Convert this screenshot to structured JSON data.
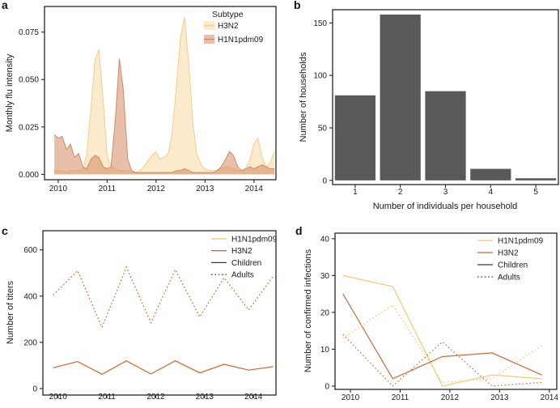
{
  "figure": {
    "panel_labels": {
      "a": "a",
      "b": "b",
      "c": "c",
      "d": "d"
    }
  },
  "colors": {
    "axis": "#262626",
    "text": "#1a1a1a",
    "background": "#ffffff",
    "bar": "#595959",
    "h3n2_fill": "#FBEACB",
    "h3n2_edge": "#F1CE8F",
    "h1n1_fill": "rgba(208,128,87,0.5)",
    "h1n1_edge": "#CE8B66",
    "h1n1_line": "#F6C76F",
    "h3n2_line": "#CF6B3D",
    "group_line": "#3a3a3a"
  },
  "chart_data": [
    {
      "id": "a",
      "type": "area",
      "title": "",
      "xlabel": "",
      "ylabel": "Monthly flu intensity",
      "xlim": [
        2009.72,
        2014.45
      ],
      "ylim": [
        -0.0028,
        0.0885
      ],
      "xticks": [
        2010,
        2011,
        2012,
        2013,
        2014
      ],
      "yticks": [
        0,
        0.025,
        0.05,
        0.075
      ],
      "ytick_labels": [
        "0.000",
        "0.025",
        "0.050",
        "0.075"
      ],
      "grid": false,
      "legend": {
        "title": "Subtype",
        "position": "top-right",
        "entries": [
          {
            "label": "H3N2",
            "fill": "#FBEACB",
            "line": "#F1CE8F"
          },
          {
            "label": "H1N1pdm09",
            "fill": "rgba(208,128,87,0.5)",
            "line": "#CE8B66"
          }
        ]
      },
      "series": [
        {
          "name": "H3N2",
          "fill": "#FBEACB",
          "line": "#F1CE8F",
          "x": [
            2009.92,
            2010.0,
            2010.08,
            2010.17,
            2010.25,
            2010.33,
            2010.42,
            2010.5,
            2010.58,
            2010.67,
            2010.75,
            2010.83,
            2010.92,
            2011.0,
            2011.08,
            2011.17,
            2011.25,
            2011.33,
            2011.42,
            2011.5,
            2011.58,
            2011.67,
            2011.75,
            2011.83,
            2011.92,
            2012.0,
            2012.08,
            2012.17,
            2012.25,
            2012.33,
            2012.42,
            2012.5,
            2012.58,
            2012.67,
            2012.75,
            2012.83,
            2012.92,
            2013.0,
            2013.08,
            2013.17,
            2013.25,
            2013.33,
            2013.42,
            2013.5,
            2013.58,
            2013.67,
            2013.75,
            2013.83,
            2013.92,
            2014.0,
            2014.08,
            2014.17,
            2014.25,
            2014.33,
            2014.42
          ],
          "y": [
            0.002,
            0.002,
            0.002,
            0.001,
            0.002,
            0.002,
            0.002,
            0.003,
            0.01,
            0.035,
            0.06,
            0.066,
            0.038,
            0.01,
            0.004,
            0.003,
            0.002,
            0.002,
            0.002,
            0.001,
            0.001,
            0.002,
            0.004,
            0.007,
            0.01,
            0.012,
            0.008,
            0.009,
            0.011,
            0.022,
            0.048,
            0.072,
            0.083,
            0.058,
            0.028,
            0.011,
            0.005,
            0.003,
            0.002,
            0.002,
            0.002,
            0.003,
            0.004,
            0.004,
            0.003,
            0.002,
            0.002,
            0.003,
            0.008,
            0.016,
            0.019,
            0.009,
            0.004,
            0.006,
            0.012
          ]
        },
        {
          "name": "H1N1pdm09",
          "fill": "rgba(208,128,87,0.5)",
          "line": "#CE8B66",
          "x": [
            2009.92,
            2010.0,
            2010.08,
            2010.17,
            2010.25,
            2010.33,
            2010.42,
            2010.5,
            2010.58,
            2010.67,
            2010.75,
            2010.83,
            2010.92,
            2011.0,
            2011.08,
            2011.17,
            2011.25,
            2011.33,
            2011.42,
            2011.5,
            2011.58,
            2011.67,
            2011.75,
            2011.83,
            2011.92,
            2012.0,
            2012.08,
            2012.17,
            2012.25,
            2012.33,
            2012.42,
            2012.5,
            2012.58,
            2012.67,
            2012.75,
            2012.83,
            2012.92,
            2013.0,
            2013.08,
            2013.17,
            2013.25,
            2013.33,
            2013.42,
            2013.5,
            2013.58,
            2013.67,
            2013.75,
            2013.83,
            2013.92,
            2014.0,
            2014.08,
            2014.17,
            2014.25,
            2014.33,
            2014.42
          ],
          "y": [
            0.021,
            0.019,
            0.02,
            0.013,
            0.016,
            0.009,
            0.011,
            0.004,
            0.003,
            0.008,
            0.01,
            0.009,
            0.004,
            0.003,
            0.004,
            0.03,
            0.061,
            0.045,
            0.008,
            0.002,
            0.001,
            0.001,
            0.001,
            0.001,
            0.001,
            0.001,
            0.001,
            0.001,
            0.001,
            0.001,
            0.002,
            0.002,
            0.003,
            0.002,
            0.001,
            0.001,
            0.001,
            0.001,
            0.001,
            0.001,
            0.002,
            0.004,
            0.008,
            0.012,
            0.01,
            0.004,
            0.002,
            0.003,
            0.004,
            0.003,
            0.004,
            0.005,
            0.004,
            0.003,
            0.003
          ]
        }
      ]
    },
    {
      "id": "b",
      "type": "bar",
      "title": "",
      "xlabel": "Number of individuals per household",
      "ylabel": "Number of households",
      "categories": [
        "1",
        "2",
        "3",
        "4",
        "5"
      ],
      "values": [
        81,
        158,
        85,
        11,
        2
      ],
      "ylim": [
        -4,
        162.6
      ],
      "yticks": [
        0,
        50,
        100,
        150
      ],
      "ytick_labels": [
        "0",
        "50",
        "100",
        "150"
      ],
      "bar_color": "#595959",
      "grid": false
    },
    {
      "id": "c",
      "type": "line",
      "title": "",
      "xlabel": "",
      "ylabel": "Number of titers",
      "xlim": [
        2009.69,
        2014.46
      ],
      "ylim": [
        -28,
        683
      ],
      "xticks": [
        2010,
        2011,
        2012,
        2013,
        2014
      ],
      "yticks": [
        0,
        200,
        400,
        600
      ],
      "ytick_labels": [
        "0",
        "200",
        "400",
        "600"
      ],
      "grid": false,
      "x": [
        2009.9,
        2010.4,
        2010.9,
        2011.4,
        2011.9,
        2012.4,
        2012.9,
        2013.4,
        2013.9,
        2014.4
      ],
      "series": [
        {
          "name": "H1N1pdm09-Children",
          "subtype": "H1N1pdm09",
          "age_group": "Children",
          "color": "#F6C76F",
          "dash": "solid",
          "values": [
            90,
            117,
            62,
            120,
            63,
            120,
            68,
            105,
            80,
            95
          ]
        },
        {
          "name": "H3N2-Children",
          "subtype": "H3N2",
          "age_group": "Children",
          "color": "#CF6B3D",
          "dash": "solid",
          "values": [
            90,
            117,
            62,
            120,
            63,
            120,
            68,
            105,
            80,
            95
          ]
        },
        {
          "name": "H1N1pdm09-Adults",
          "subtype": "H1N1pdm09",
          "age_group": "Adults",
          "color": "#F6C76F",
          "dash": "dotted",
          "values": [
            405,
            510,
            265,
            525,
            285,
            515,
            310,
            480,
            340,
            485
          ]
        },
        {
          "name": "H3N2-Adults",
          "subtype": "H3N2",
          "age_group": "Adults",
          "color": "#CF6B3D",
          "dash": "dotted",
          "values": [
            405,
            510,
            265,
            525,
            285,
            515,
            310,
            480,
            340,
            485
          ]
        }
      ],
      "legend": {
        "position": "top-right",
        "entries": [
          {
            "label": "H1N1pdm09",
            "color": "#F6C76F",
            "dash": "solid"
          },
          {
            "label": "H3N2",
            "color": "#CF6B3D",
            "dash": "solid"
          },
          {
            "label": "Children",
            "color": "#3a3a3a",
            "dash": "solid"
          },
          {
            "label": "Adults",
            "color": "#3a3a3a",
            "dash": "dotted"
          }
        ]
      }
    },
    {
      "id": "d",
      "type": "line",
      "title": "",
      "xlabel": "",
      "ylabel": "Number of  confirmed infections",
      "xlim": [
        2009.69,
        2014.15
      ],
      "ylim": [
        -0.9,
        41.5
      ],
      "xticks": [
        2010,
        2011,
        2012,
        2013,
        2014
      ],
      "yticks": [
        0,
        10,
        20,
        30,
        40
      ],
      "ytick_labels": [
        "0",
        "10",
        "20",
        "30",
        "40"
      ],
      "grid": false,
      "x": [
        2009.85,
        2010.85,
        2011.85,
        2012.85,
        2013.85
      ],
      "series": [
        {
          "name": "H1N1pdm09-Children",
          "subtype": "H1N1pdm09",
          "age_group": "Children",
          "color": "#F6C76F",
          "dash": "solid",
          "values": [
            30,
            27,
            0,
            3,
            2
          ]
        },
        {
          "name": "H3N2-Children",
          "subtype": "H3N2",
          "age_group": "Children",
          "color": "#CF6B3D",
          "dash": "solid",
          "values": [
            25,
            2,
            8,
            9,
            3
          ]
        },
        {
          "name": "H1N1pdm09-Adults",
          "subtype": "H1N1pdm09",
          "age_group": "Adults",
          "color": "#F6C76F",
          "dash": "dotted",
          "values": [
            13,
            22,
            1,
            2,
            11
          ]
        },
        {
          "name": "H3N2-Adults",
          "subtype": "H3N2",
          "age_group": "Adults",
          "color": "#CF6B3D",
          "dash": "dotted",
          "values": [
            14,
            0,
            12,
            0,
            1
          ]
        }
      ],
      "legend": {
        "position": "top-right",
        "entries": [
          {
            "label": "H1N1pdm09",
            "color": "#F6C76F",
            "dash": "solid"
          },
          {
            "label": "H3N2",
            "color": "#CF6B3D",
            "dash": "solid"
          },
          {
            "label": "Children",
            "color": "#3a3a3a",
            "dash": "solid"
          },
          {
            "label": "Adults",
            "color": "#3a3a3a",
            "dash": "dotted"
          }
        ]
      }
    }
  ]
}
